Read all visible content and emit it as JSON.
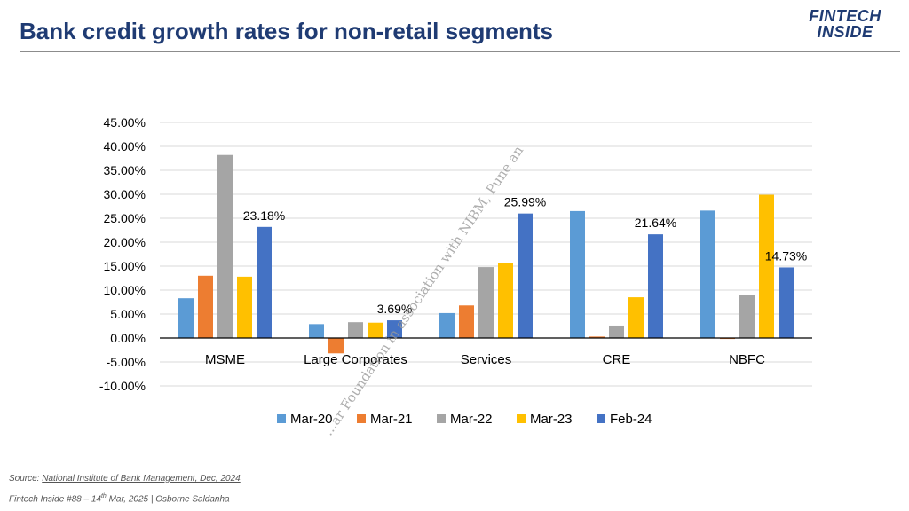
{
  "page": {
    "title": "Bank credit growth rates for non-retail segments",
    "brand_line1": "FINTECH",
    "brand_line2": "INSIDE",
    "source_prefix": "Source: ",
    "source_link": "National Institute of Bank Management, Dec, 2024",
    "credit_prefix": "Fintech Inside #88 – 14",
    "credit_sup": "th",
    "credit_suffix": " Mar, 2025 | Osborne Saldanha",
    "watermark": "...ar Foundation in association with NIBM, Pune an"
  },
  "colors": {
    "title": "#1f3b73",
    "Mar-20": "#5b9bd5",
    "Mar-21": "#ed7d31",
    "Mar-22": "#a5a5a5",
    "Mar-23": "#ffc000",
    "Feb-24": "#4472c4"
  },
  "chart_data": {
    "type": "bar",
    "categories": [
      "MSME",
      "Large Corporates",
      "Services",
      "CRE",
      "NBFC"
    ],
    "series": [
      {
        "name": "Mar-20",
        "values": [
          8.3,
          2.9,
          5.2,
          26.5,
          26.6
        ]
      },
      {
        "name": "Mar-21",
        "values": [
          13.0,
          -3.2,
          6.8,
          0.3,
          -0.2
        ]
      },
      {
        "name": "Mar-22",
        "values": [
          38.2,
          3.3,
          14.8,
          2.6,
          8.9
        ]
      },
      {
        "name": "Mar-23",
        "values": [
          12.8,
          3.2,
          15.6,
          8.5,
          29.9
        ]
      },
      {
        "name": "Feb-24",
        "values": [
          23.18,
          3.69,
          25.99,
          21.64,
          14.73
        ]
      }
    ],
    "data_labels": [
      {
        "category": "MSME",
        "series": "Feb-24",
        "text": "23.18%"
      },
      {
        "category": "Large Corporates",
        "series": "Feb-24",
        "text": "3.69%"
      },
      {
        "category": "Services",
        "series": "Feb-24",
        "text": "25.99%"
      },
      {
        "category": "CRE",
        "series": "Feb-24",
        "text": "21.64%"
      },
      {
        "category": "NBFC",
        "series": "Feb-24",
        "text": "14.73%"
      }
    ],
    "ylim": [
      -10,
      45
    ],
    "ytick_labels": [
      "45.00%",
      "40.00%",
      "35.00%",
      "30.00%",
      "25.00%",
      "20.00%",
      "15.00%",
      "10.00%",
      "5.00%",
      "0.00%",
      "-5.00%",
      "-10.00%"
    ],
    "grid": true,
    "legend": "bottom",
    "title": "",
    "xlabel": "",
    "ylabel": ""
  }
}
